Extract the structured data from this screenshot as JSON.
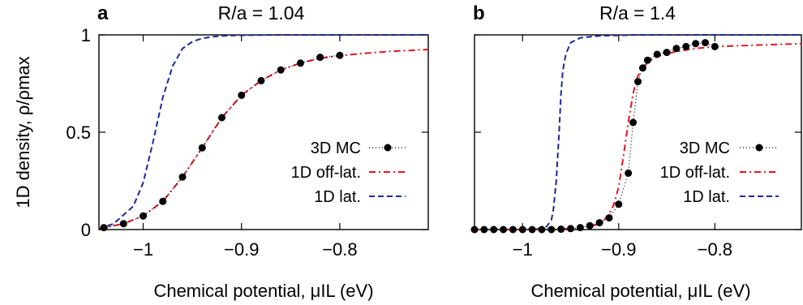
{
  "figure": {
    "ylabel": "1D density, ρ/ρmax"
  },
  "chart_data": [
    {
      "type": "line",
      "panel": "a",
      "title": "R/a = 1.04",
      "xlabel": "Chemical potential, μIL (eV)",
      "ylabel": "1D density, ρ/ρmax",
      "xlim": [
        -1.045,
        -0.71
      ],
      "ylim": [
        0,
        1
      ],
      "x_ticks": [
        -1.0,
        -0.9,
        -0.8
      ],
      "x_tick_labels": [
        "−1",
        "−0.9",
        "−0.8"
      ],
      "y_ticks": [
        0,
        0.5,
        1
      ],
      "y_tick_labels": [
        "0",
        "0.5",
        "1"
      ],
      "grid": false,
      "legend_position": "center-right",
      "series": [
        {
          "name": "3D MC",
          "style": "dotted-markers",
          "color": "#000000",
          "x": [
            -1.04,
            -1.02,
            -1.0,
            -0.98,
            -0.96,
            -0.94,
            -0.92,
            -0.9,
            -0.88,
            -0.86,
            -0.84,
            -0.82,
            -0.8
          ],
          "y": [
            0.01,
            0.03,
            0.07,
            0.145,
            0.27,
            0.42,
            0.575,
            0.69,
            0.765,
            0.82,
            0.855,
            0.885,
            0.895
          ]
        },
        {
          "name": "1D off-lat.",
          "style": "dash-dot",
          "color": "#e8141e",
          "x": [
            -1.045,
            -1.02,
            -1.0,
            -0.98,
            -0.96,
            -0.94,
            -0.92,
            -0.9,
            -0.88,
            -0.86,
            -0.84,
            -0.82,
            -0.8,
            -0.78,
            -0.75,
            -0.71
          ],
          "y": [
            0.005,
            0.03,
            0.07,
            0.145,
            0.27,
            0.42,
            0.575,
            0.69,
            0.765,
            0.82,
            0.855,
            0.88,
            0.893,
            0.903,
            0.915,
            0.925
          ]
        },
        {
          "name": "1D lat.",
          "style": "dashed",
          "color": "#1a2a9a",
          "x": [
            -1.045,
            -1.03,
            -1.01,
            -1.0,
            -0.99,
            -0.98,
            -0.97,
            -0.96,
            -0.95,
            -0.94,
            -0.93,
            -0.92,
            -0.9,
            -0.88,
            -0.86,
            -0.84,
            -0.8,
            -0.75,
            -0.71
          ],
          "y": [
            0.005,
            0.03,
            0.12,
            0.24,
            0.45,
            0.68,
            0.84,
            0.93,
            0.965,
            0.982,
            0.99,
            0.995,
            0.998,
            0.999,
            1.0,
            1.0,
            1.0,
            1.0,
            1.0
          ]
        }
      ]
    },
    {
      "type": "line",
      "panel": "b",
      "title": "R/a = 1.4",
      "xlabel": "Chemical potential, μIL (eV)",
      "ylabel": "",
      "xlim": [
        -1.05,
        -0.71
      ],
      "ylim": [
        0,
        1
      ],
      "x_ticks": [
        -1.0,
        -0.9,
        -0.8
      ],
      "x_tick_labels": [
        "−1",
        "−0.9",
        "−0.8"
      ],
      "y_ticks": [
        0,
        0.5,
        1
      ],
      "y_tick_labels": [],
      "grid": false,
      "legend_position": "center-right",
      "series": [
        {
          "name": "3D MC",
          "style": "dotted-markers",
          "color": "#000000",
          "x": [
            -1.05,
            -1.04,
            -1.03,
            -1.02,
            -1.01,
            -1.0,
            -0.99,
            -0.98,
            -0.97,
            -0.96,
            -0.95,
            -0.94,
            -0.93,
            -0.92,
            -0.91,
            -0.9,
            -0.89,
            -0.885,
            -0.88,
            -0.875,
            -0.87,
            -0.86,
            -0.85,
            -0.84,
            -0.83,
            -0.82,
            -0.81,
            -0.8
          ],
          "y": [
            0.0,
            0.0,
            0.0,
            0.0,
            0.0,
            0.0,
            0.0,
            0.0,
            0.0,
            0.002,
            0.005,
            0.01,
            0.02,
            0.035,
            0.06,
            0.13,
            0.29,
            0.55,
            0.76,
            0.83,
            0.87,
            0.9,
            0.91,
            0.93,
            0.94,
            0.955,
            0.96,
            0.94
          ]
        },
        {
          "name": "1D off-lat.",
          "style": "dash-dot",
          "color": "#e8141e",
          "x": [
            -1.05,
            -1.0,
            -0.96,
            -0.94,
            -0.93,
            -0.92,
            -0.915,
            -0.91,
            -0.905,
            -0.9,
            -0.895,
            -0.89,
            -0.885,
            -0.88,
            -0.87,
            -0.86,
            -0.84,
            -0.82,
            -0.8,
            -0.77,
            -0.74,
            -0.71
          ],
          "y": [
            0.0,
            0.0,
            0.002,
            0.008,
            0.015,
            0.03,
            0.05,
            0.08,
            0.13,
            0.22,
            0.38,
            0.55,
            0.7,
            0.79,
            0.86,
            0.89,
            0.915,
            0.93,
            0.94,
            0.945,
            0.95,
            0.955
          ]
        },
        {
          "name": "1D lat.",
          "style": "dashed",
          "color": "#1a2a9a",
          "x": [
            -1.05,
            -1.0,
            -0.98,
            -0.975,
            -0.97,
            -0.968,
            -0.965,
            -0.962,
            -0.96,
            -0.958,
            -0.955,
            -0.95,
            -0.94,
            -0.92,
            -0.88,
            -0.8,
            -0.71
          ],
          "y": [
            0.0,
            0.001,
            0.005,
            0.015,
            0.05,
            0.1,
            0.25,
            0.5,
            0.7,
            0.82,
            0.9,
            0.96,
            0.985,
            0.995,
            1.0,
            1.0,
            1.0
          ]
        }
      ]
    }
  ]
}
